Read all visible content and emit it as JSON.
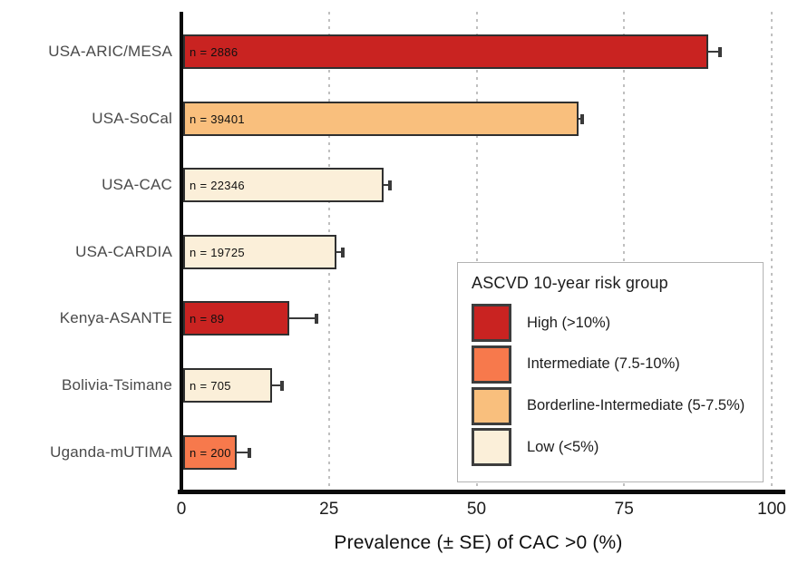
{
  "chart_data": {
    "type": "bar",
    "orientation": "horizontal",
    "title": "",
    "xlabel": "Prevalence (± SE) of CAC >0 (%)",
    "ylabel": "",
    "xlim": [
      0,
      100
    ],
    "xticks": [
      0,
      25,
      50,
      75,
      100
    ],
    "grid": "vertical-dashed",
    "categories": [
      "USA-ARIC/MESA",
      "USA-SoCal",
      "USA-CAC",
      "USA-CARDIA",
      "Kenya-ASANTE",
      "Bolivia-Tsimane",
      "Uganda-mUTIMA"
    ],
    "rows": [
      {
        "label": "USA-ARIC/MESA",
        "n": 2886,
        "n_label": "n = 2886",
        "value": 89,
        "se": 1.8,
        "risk_group": "High (>10%)",
        "color": "#C92321"
      },
      {
        "label": "USA-SoCal",
        "n": 39401,
        "n_label": "n = 39401",
        "value": 67,
        "se": 0.5,
        "risk_group": "Borderline-Intermediate (5-7.5%)",
        "color": "#F9BF7D"
      },
      {
        "label": "USA-CAC",
        "n": 22346,
        "n_label": "n = 22346",
        "value": 34,
        "se": 0.8,
        "risk_group": "Low (<5%)",
        "color": "#FBEFD9"
      },
      {
        "label": "USA-CARDIA",
        "n": 19725,
        "n_label": "n = 19725",
        "value": 26,
        "se": 0.9,
        "risk_group": "Low (<5%)",
        "color": "#FBEFD9"
      },
      {
        "label": "Kenya-ASANTE",
        "n": 89,
        "n_label": "n = 89",
        "value": 18,
        "se": 4.4,
        "risk_group": "High (>10%)",
        "color": "#C92321"
      },
      {
        "label": "Bolivia-Tsimane",
        "n": 705,
        "n_label": "n = 705",
        "value": 15,
        "se": 1.6,
        "risk_group": "Low (<5%)",
        "color": "#FBEFD9"
      },
      {
        "label": "Uganda-mUTIMA",
        "n": 200,
        "n_label": "n = 200",
        "value": 9,
        "se": 2.0,
        "risk_group": "Intermediate (7.5-10%)",
        "color": "#F7794C"
      }
    ],
    "legend": {
      "title": "ASCVD 10-year risk group",
      "position": "right-middle",
      "entries": [
        {
          "label": "High (>10%)",
          "color": "#C92321"
        },
        {
          "label": "Intermediate (7.5-10%)",
          "color": "#F7794C"
        },
        {
          "label": "Borderline-Intermediate (5-7.5%)",
          "color": "#F9BF7D"
        },
        {
          "label": "Low (<5%)",
          "color": "#FBEFD9"
        }
      ]
    },
    "colors": {
      "bar_border": "#303030",
      "error_bar": "#3a3a3a",
      "axis_line": "#0a0a0a",
      "gridline": "#ababab",
      "category_text": "#4a4a4a",
      "legend_border": "#b3b3b3"
    }
  }
}
